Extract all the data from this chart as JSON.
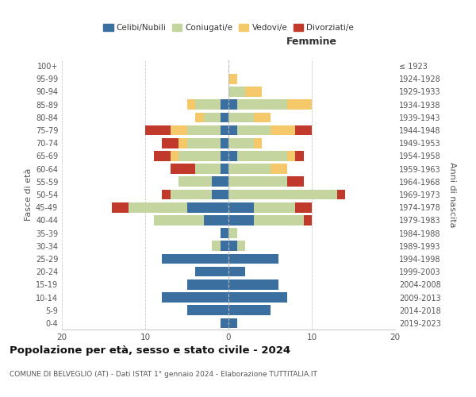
{
  "age_groups": [
    "0-4",
    "5-9",
    "10-14",
    "15-19",
    "20-24",
    "25-29",
    "30-34",
    "35-39",
    "40-44",
    "45-49",
    "50-54",
    "55-59",
    "60-64",
    "65-69",
    "70-74",
    "75-79",
    "80-84",
    "85-89",
    "90-94",
    "95-99",
    "100+"
  ],
  "birth_years": [
    "2019-2023",
    "2014-2018",
    "2009-2013",
    "2004-2008",
    "1999-2003",
    "1994-1998",
    "1989-1993",
    "1984-1988",
    "1979-1983",
    "1974-1978",
    "1969-1973",
    "1964-1968",
    "1959-1963",
    "1954-1958",
    "1949-1953",
    "1944-1948",
    "1939-1943",
    "1934-1938",
    "1929-1933",
    "1924-1928",
    "≤ 1923"
  ],
  "colors": {
    "celibi": "#3b6fa0",
    "coniugati": "#c5d5a0",
    "vedovi": "#f5c96a",
    "divorziati": "#c0392b"
  },
  "males": {
    "celibi": [
      1,
      5,
      8,
      5,
      4,
      8,
      1,
      1,
      3,
      5,
      2,
      2,
      1,
      1,
      1,
      1,
      1,
      1,
      0,
      0,
      0
    ],
    "coniugati": [
      0,
      0,
      0,
      0,
      0,
      0,
      1,
      0,
      6,
      7,
      5,
      4,
      3,
      5,
      4,
      4,
      2,
      3,
      0,
      0,
      0
    ],
    "vedovi": [
      0,
      0,
      0,
      0,
      0,
      0,
      0,
      0,
      0,
      0,
      0,
      0,
      0,
      1,
      1,
      2,
      1,
      1,
      0,
      0,
      0
    ],
    "divorziati": [
      0,
      0,
      0,
      0,
      0,
      0,
      0,
      0,
      0,
      2,
      1,
      0,
      3,
      2,
      2,
      3,
      0,
      0,
      0,
      0,
      0
    ]
  },
  "females": {
    "nubili": [
      1,
      5,
      7,
      6,
      2,
      6,
      1,
      0,
      3,
      3,
      0,
      0,
      0,
      1,
      0,
      1,
      0,
      1,
      0,
      0,
      0
    ],
    "coniugate": [
      0,
      0,
      0,
      0,
      0,
      0,
      1,
      1,
      6,
      5,
      13,
      7,
      5,
      6,
      3,
      4,
      3,
      6,
      2,
      0,
      0
    ],
    "vedove": [
      0,
      0,
      0,
      0,
      0,
      0,
      0,
      0,
      0,
      0,
      0,
      0,
      2,
      1,
      1,
      3,
      2,
      3,
      2,
      1,
      0
    ],
    "divorziate": [
      0,
      0,
      0,
      0,
      0,
      0,
      0,
      0,
      1,
      2,
      1,
      2,
      0,
      1,
      0,
      2,
      0,
      0,
      0,
      0,
      0
    ]
  },
  "xlim": 20,
  "title": "Popolazione per età, sesso e stato civile - 2024",
  "subtitle": "COMUNE DI BELVEGLIO (AT) - Dati ISTAT 1° gennaio 2024 - Elaborazione TUTTITALIA.IT",
  "ylabel_left": "Fasce di età",
  "ylabel_right": "Anni di nascita",
  "xlabel_right": "Femmine",
  "legend_labels": [
    "Celibi/Nubili",
    "Coniugati/e",
    "Vedovi/e",
    "Divorziati/e"
  ]
}
